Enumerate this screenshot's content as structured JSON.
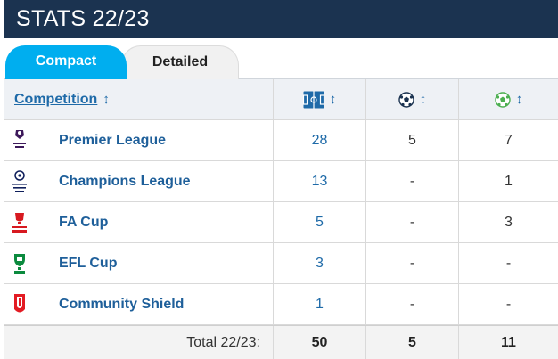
{
  "header": {
    "title": "STATS 22/23"
  },
  "tabs": [
    {
      "label": "Compact",
      "active": true
    },
    {
      "label": "Detailed",
      "active": false
    }
  ],
  "table": {
    "competition_header": "Competition",
    "sort_glyph": "↕",
    "column_icons": [
      "pitch-appearances-icon",
      "football-goals-icon",
      "football-assists-icon"
    ],
    "rows": [
      {
        "name": "Premier League",
        "logo": "premier-league-logo-icon",
        "apps": "28",
        "goals": "5",
        "assists": "7"
      },
      {
        "name": "Champions League",
        "logo": "champions-league-logo-icon",
        "apps": "13",
        "goals": "-",
        "assists": "1"
      },
      {
        "name": "FA Cup",
        "logo": "fa-cup-logo-icon",
        "apps": "5",
        "goals": "-",
        "assists": "3"
      },
      {
        "name": "EFL Cup",
        "logo": "efl-cup-logo-icon",
        "apps": "3",
        "goals": "-",
        "assists": "-"
      },
      {
        "name": "Community Shield",
        "logo": "community-shield-logo-icon",
        "apps": "1",
        "goals": "-",
        "assists": "-"
      }
    ],
    "total": {
      "label": "Total 22/23:",
      "apps": "50",
      "goals": "5",
      "assists": "11"
    }
  },
  "colors": {
    "header_bg": "#1b3350",
    "active_tab": "#00aeef",
    "link": "#1e6aa8"
  }
}
